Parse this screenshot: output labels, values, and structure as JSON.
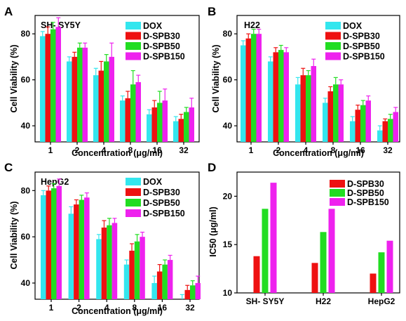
{
  "colors": {
    "DOX": "#33e6ee",
    "D-SPB30": "#ee1111",
    "D-SPB50": "#22dd22",
    "D-SPB150": "#ee22ee",
    "err_DOX": "#33e6ee",
    "err_D-SPB30": "#ee1111",
    "err_D-SPB50": "#22dd22",
    "err_D-SPB150": "#ee22ee"
  },
  "chart_data": [
    {
      "type": "bar",
      "panel": "A",
      "title": "SH- SY5Y",
      "xlabel": "Concentration (μg/ml)",
      "ylabel": "Cell Viability (%)",
      "categories": [
        "1",
        "2",
        "4",
        "8",
        "16",
        "32"
      ],
      "yticks": [
        "40",
        "60",
        "80"
      ],
      "ylim": [
        33,
        88
      ],
      "series": [
        {
          "name": "DOX",
          "values": [
            79,
            68,
            62,
            51,
            45,
            42
          ],
          "errors": [
            2,
            2,
            3,
            2,
            2,
            2
          ]
        },
        {
          "name": "D-SPB30",
          "values": [
            80,
            70,
            64,
            52,
            48,
            43
          ],
          "errors": [
            3,
            2,
            4,
            3,
            3,
            2
          ]
        },
        {
          "name": "D-SPB50",
          "values": [
            82,
            74,
            68,
            58,
            50,
            46
          ],
          "errors": [
            3,
            2,
            3,
            6,
            5,
            2
          ]
        },
        {
          "name": "D-SPB150",
          "values": [
            83,
            74,
            70,
            59,
            51,
            48
          ],
          "errors": [
            4,
            2,
            6,
            3,
            5,
            4
          ]
        }
      ]
    },
    {
      "type": "bar",
      "panel": "B",
      "title": "H22",
      "xlabel": "Concentration (μg/ml)",
      "ylabel": "Cell Viability (%)",
      "categories": [
        "1",
        "2",
        "4",
        "8",
        "16",
        "32"
      ],
      "yticks": [
        "40",
        "60",
        "80"
      ],
      "ylim": [
        33,
        88
      ],
      "series": [
        {
          "name": "DOX",
          "values": [
            75,
            68,
            58,
            50,
            42,
            38
          ],
          "errors": [
            2,
            2,
            3,
            2,
            2,
            2
          ]
        },
        {
          "name": "D-SPB30",
          "values": [
            78,
            72,
            62,
            55,
            47,
            42
          ],
          "errors": [
            2,
            2,
            3,
            2,
            2,
            1
          ]
        },
        {
          "name": "D-SPB50",
          "values": [
            80,
            73,
            62,
            58,
            49,
            43
          ],
          "errors": [
            2,
            2,
            2,
            3,
            2,
            2
          ]
        },
        {
          "name": "D-SPB150",
          "values": [
            80,
            72,
            66,
            58,
            51,
            46
          ],
          "errors": [
            2,
            2,
            3,
            2,
            2,
            2
          ]
        }
      ]
    },
    {
      "type": "bar",
      "panel": "C",
      "title": "HepG2",
      "xlabel": "Concentration (μg/ml)",
      "ylabel": "Cell Viability (%)",
      "categories": [
        "1",
        "2",
        "4",
        "8",
        "16",
        "32"
      ],
      "yticks": [
        "40",
        "60",
        "80"
      ],
      "ylim": [
        33,
        88
      ],
      "series": [
        {
          "name": "DOX",
          "values": [
            78,
            70,
            59,
            48,
            40,
            33
          ],
          "errors": [
            2,
            3,
            2,
            2,
            3,
            2
          ]
        },
        {
          "name": "D-SPB30",
          "values": [
            80,
            74,
            64,
            54,
            45,
            37
          ],
          "errors": [
            2,
            2,
            3,
            3,
            3,
            2
          ]
        },
        {
          "name": "D-SPB50",
          "values": [
            81,
            76,
            65,
            58,
            48,
            39
          ],
          "errors": [
            2,
            2,
            3,
            3,
            2,
            2
          ]
        },
        {
          "name": "D-SPB150",
          "values": [
            82,
            77,
            66,
            60,
            50,
            40
          ],
          "errors": [
            3,
            2,
            2,
            2,
            2,
            3
          ]
        }
      ]
    },
    {
      "type": "bar",
      "panel": "D",
      "xlabel": "",
      "ylabel": "IC50 (μg/ml)",
      "categories": [
        "SH- SY5Y",
        "H22",
        "HepG2"
      ],
      "yticks": [
        "10",
        "15",
        "20"
      ],
      "ylim": [
        10,
        22.5
      ],
      "series": [
        {
          "name": "D-SPB30",
          "values": [
            13.8,
            13.1,
            12.0
          ]
        },
        {
          "name": "D-SPB50",
          "values": [
            18.7,
            16.3,
            14.2
          ]
        },
        {
          "name": "D-SPB150",
          "values": [
            21.4,
            18.7,
            15.4
          ]
        }
      ]
    }
  ]
}
